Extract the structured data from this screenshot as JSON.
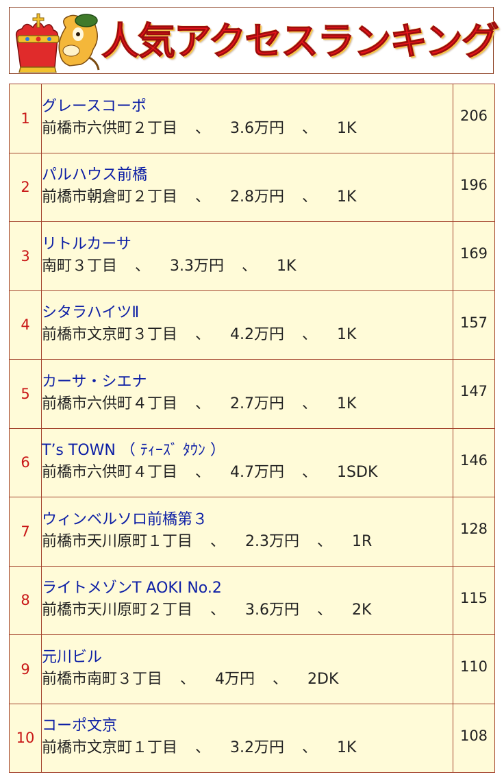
{
  "banner": {
    "title": "人気アクセスランキング"
  },
  "icons": {
    "mascot": "crowned-horse-mascot-icon"
  },
  "colors": {
    "rank": "#c81616",
    "name_link": "#0c1ea5",
    "cell_bg": "#fffbd8",
    "border": "#a2402a",
    "title": "#e8141b"
  },
  "separator": "、",
  "ranking": [
    {
      "rank": "1",
      "name": "グレースコーポ",
      "address": "前橋市六供町２丁目",
      "rent": "3.6万円",
      "layout": "1K",
      "count": "206"
    },
    {
      "rank": "2",
      "name": "パルハウス前橋",
      "address": "前橋市朝倉町２丁目",
      "rent": "2.8万円",
      "layout": "1K",
      "count": "196"
    },
    {
      "rank": "3",
      "name": "リトルカーサ",
      "address": "南町３丁目",
      "rent": "3.3万円",
      "layout": "1K",
      "count": "169"
    },
    {
      "rank": "4",
      "name": "シタラハイツⅡ",
      "address": "前橋市文京町３丁目",
      "rent": "4.2万円",
      "layout": "1K",
      "count": "157"
    },
    {
      "rank": "5",
      "name": "カーサ・シエナ",
      "address": "前橋市六供町４丁目",
      "rent": "2.7万円",
      "layout": "1K",
      "count": "147"
    },
    {
      "rank": "6",
      "name": "T’s TOWN （ ﾃｨｰｽﾞ ﾀｳﾝ ）",
      "address": "前橋市六供町４丁目",
      "rent": "4.7万円",
      "layout": "1SDK",
      "count": "146"
    },
    {
      "rank": "7",
      "name": "ウィンベルソロ前橋第３",
      "address": "前橋市天川原町１丁目",
      "rent": "2.3万円",
      "layout": "1R",
      "count": "128"
    },
    {
      "rank": "8",
      "name": "ライトメゾンT AOKI No.2",
      "address": "前橋市天川原町２丁目",
      "rent": "3.6万円",
      "layout": "2K",
      "count": "115"
    },
    {
      "rank": "9",
      "name": "元川ビル",
      "address": "前橋市南町３丁目",
      "rent": "4万円",
      "layout": "2DK",
      "count": "110"
    },
    {
      "rank": "10",
      "name": "コーポ文京",
      "address": "前橋市文京町１丁目",
      "rent": "3.2万円",
      "layout": "1K",
      "count": "108"
    }
  ]
}
